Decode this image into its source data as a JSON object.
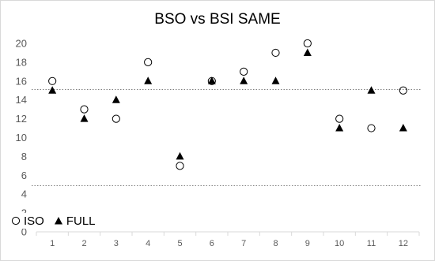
{
  "chart_data": {
    "type": "scatter",
    "title": "BSO vs BSI SAME",
    "xlabel": "",
    "ylabel": "",
    "categories": [
      "1",
      "2",
      "3",
      "4",
      "5",
      "6",
      "7",
      "8",
      "9",
      "10",
      "11",
      "12"
    ],
    "ylim": [
      0,
      20
    ],
    "yticks": [
      0,
      2,
      4,
      6,
      8,
      10,
      12,
      14,
      16,
      18,
      20
    ],
    "grid": false,
    "legend_position": "bottom-left",
    "series": [
      {
        "name": "ISO",
        "marker": "open-circle",
        "values": [
          16,
          13,
          12,
          18,
          7,
          16,
          17,
          19,
          20,
          12,
          11,
          15
        ]
      },
      {
        "name": "FULL",
        "marker": "filled-triangle",
        "values": [
          15,
          12,
          14,
          16,
          8,
          16,
          16,
          16,
          19,
          11,
          15,
          11
        ]
      }
    ],
    "reference_lines": [
      {
        "y": 15.1,
        "style": "dotted"
      },
      {
        "y": 4.9,
        "style": "dotted"
      }
    ],
    "colors": {
      "marker": "#000000",
      "axis_text": "#595959",
      "axis_line": "#d9d9d9",
      "reference_line": "#7f7f7f"
    }
  }
}
